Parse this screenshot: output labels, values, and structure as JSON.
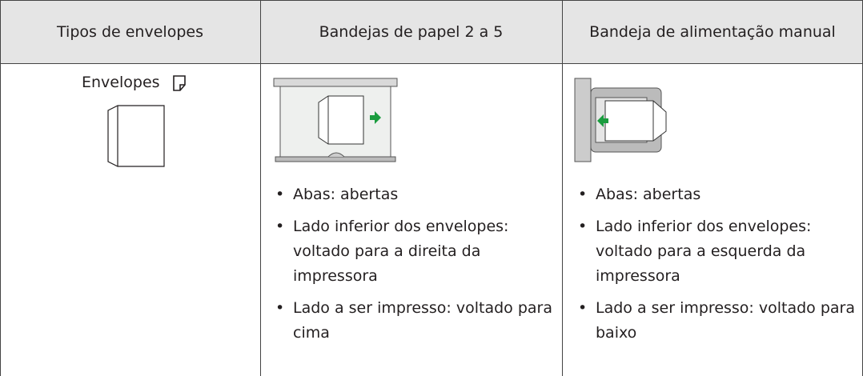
{
  "table": {
    "headers": [
      "Tipos de envelopes",
      "Bandejas de papel 2 a 5",
      "Bandeja de alimentação manual"
    ],
    "rows": [
      {
        "type": "Envelopes",
        "tray_notes": [
          "Abas: abertas",
          "Lado inferior dos envelopes: voltado para a direita da impressora",
          "Lado a ser impresso: voltado para cima"
        ],
        "bypass_notes": [
          "Abas: abertas",
          "Lado inferior dos envelopes: voltado para a esquerda da impressora",
          "Lado a ser impresso: voltado para baixo"
        ]
      }
    ]
  }
}
